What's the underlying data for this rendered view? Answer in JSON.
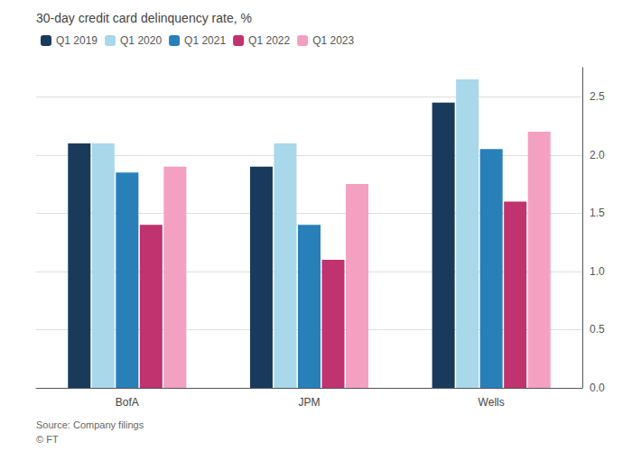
{
  "chart_data": {
    "type": "bar",
    "title": "30-day credit card delinquency rate, %",
    "categories": [
      "BofA",
      "JPM",
      "Wells"
    ],
    "series": [
      {
        "name": "Q1 2019",
        "color": "#1a3a5c",
        "values": [
          2.1,
          1.9,
          2.45
        ]
      },
      {
        "name": "Q1 2020",
        "color": "#a8d8ea",
        "values": [
          2.1,
          2.1,
          2.65
        ]
      },
      {
        "name": "Q1 2021",
        "color": "#2980b9",
        "values": [
          1.85,
          1.4,
          2.05
        ]
      },
      {
        "name": "Q1 2022",
        "color": "#c0336e",
        "values": [
          1.4,
          1.1,
          1.6
        ]
      },
      {
        "name": "Q1 2023",
        "color": "#f4a0c0",
        "values": [
          1.9,
          1.75,
          2.2
        ]
      }
    ],
    "ylim": [
      0,
      2.75
    ],
    "yticks": [
      {
        "value": 0,
        "label": "0.0"
      },
      0.5,
      {
        "value": 1,
        "label": "1.0"
      },
      1.5,
      {
        "value": 2,
        "label": "2.0"
      },
      2.5
    ],
    "grid": true,
    "legend": "top-left",
    "annotations": [
      "Source: Company filings",
      "© FT"
    ]
  }
}
